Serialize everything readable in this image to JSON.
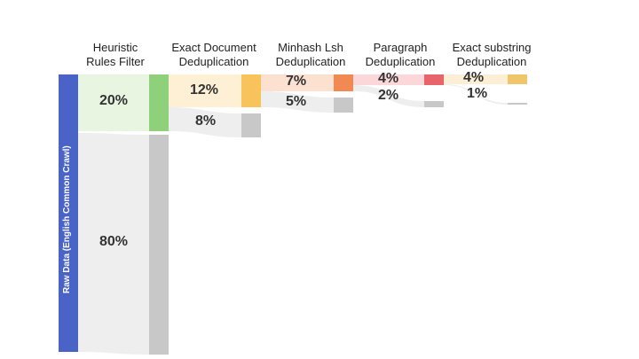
{
  "columns": [
    {
      "line1": "Heuristic",
      "line2": "Rules Filter"
    },
    {
      "line1": "Exact Document",
      "line2": "Deduplication"
    },
    {
      "line1": "Minhash Lsh",
      "line2": "Deduplication"
    },
    {
      "line1": "Paragraph",
      "line2": "Deduplication"
    },
    {
      "line1": "Exact substring",
      "line2": "Deduplication"
    }
  ],
  "source_label": "Raw Data (English Common Crawl)",
  "stages": [
    {
      "kept": "20%",
      "removed": "80%",
      "kept_color": "#8fd07a",
      "removed_color": "#c8c8c8"
    },
    {
      "kept": "12%",
      "removed": "8%",
      "kept_color": "#f7c35a",
      "removed_color": "#c8c8c8"
    },
    {
      "kept": "7%",
      "removed": "5%",
      "kept_color": "#f08a52",
      "removed_color": "#c8c8c8"
    },
    {
      "kept": "4%",
      "removed": "2%",
      "kept_color": "#e8636a",
      "removed_color": "#c8c8c8"
    },
    {
      "kept": "4%",
      "removed": "1%",
      "kept_color": "#f0c66a",
      "removed_color": "#c8c8c8"
    }
  ],
  "colors": {
    "source": "#4a63c6",
    "flow_removed": "#eeeeee"
  }
}
